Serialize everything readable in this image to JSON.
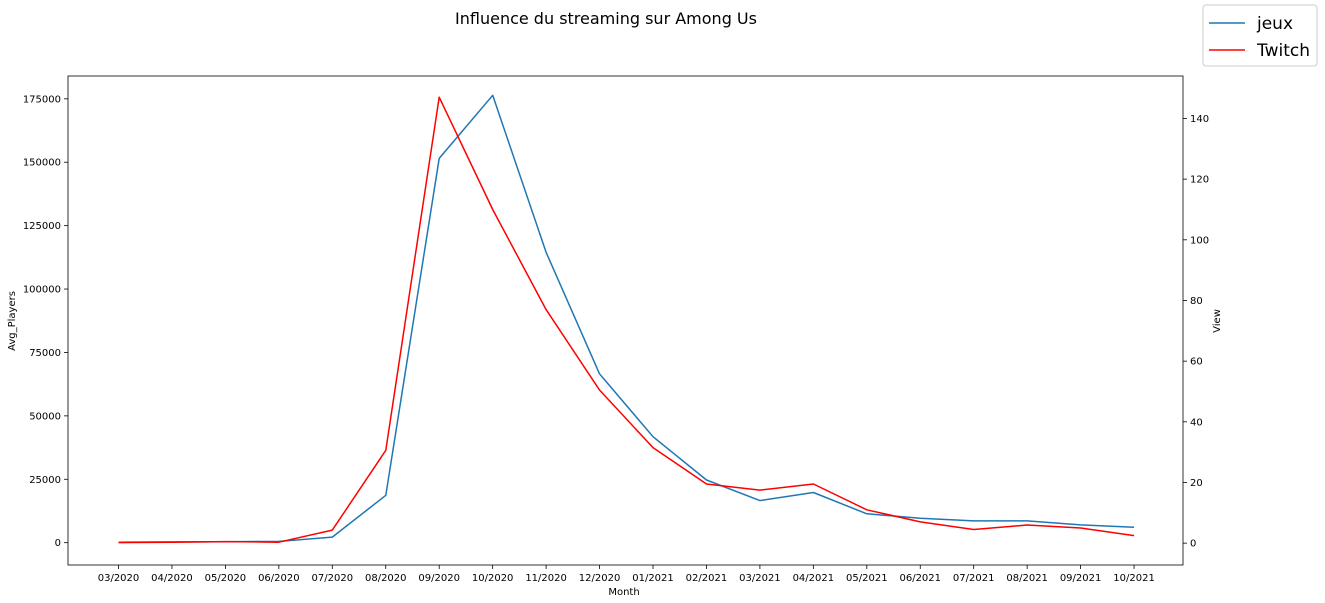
{
  "chart_data": {
    "type": "line",
    "title": "Influence du streaming sur Among Us",
    "xlabel": "Month",
    "ylabel_left": "Avg_Players",
    "ylabel_right": "View",
    "categories": [
      "03/2020",
      "04/2020",
      "05/2020",
      "06/2020",
      "07/2020",
      "08/2020",
      "09/2020",
      "10/2020",
      "11/2020",
      "12/2020",
      "01/2021",
      "02/2021",
      "03/2021",
      "04/2021",
      "05/2021",
      "06/2021",
      "07/2021",
      "08/2021",
      "09/2021",
      "10/2021"
    ],
    "ylim_left": [
      -8800,
      184000
    ],
    "ylim_right": [
      -7.2,
      154
    ],
    "yticks_left": [
      0,
      25000,
      50000,
      75000,
      100000,
      125000,
      150000,
      175000
    ],
    "yticks_right": [
      0,
      20,
      40,
      60,
      80,
      100,
      120,
      140
    ],
    "grid": false,
    "legend_position": "top-right",
    "series": [
      {
        "name": "jeux",
        "axis": "left",
        "color": "#1f77b4",
        "values": [
          200,
          300,
          400,
          500,
          2200,
          18700,
          151500,
          176400,
          114500,
          66600,
          41800,
          24700,
          16600,
          19800,
          11400,
          9600,
          8600,
          8600,
          7000,
          6100
        ]
      },
      {
        "name": "Twitch",
        "axis": "right",
        "color": "#ff0000",
        "values": [
          0.2,
          0.3,
          0.5,
          0.3,
          4.3,
          30.6,
          147,
          110,
          77,
          50.5,
          31.5,
          19.5,
          17.5,
          19.5,
          11,
          7,
          4.5,
          6,
          5,
          2.5
        ]
      }
    ]
  }
}
